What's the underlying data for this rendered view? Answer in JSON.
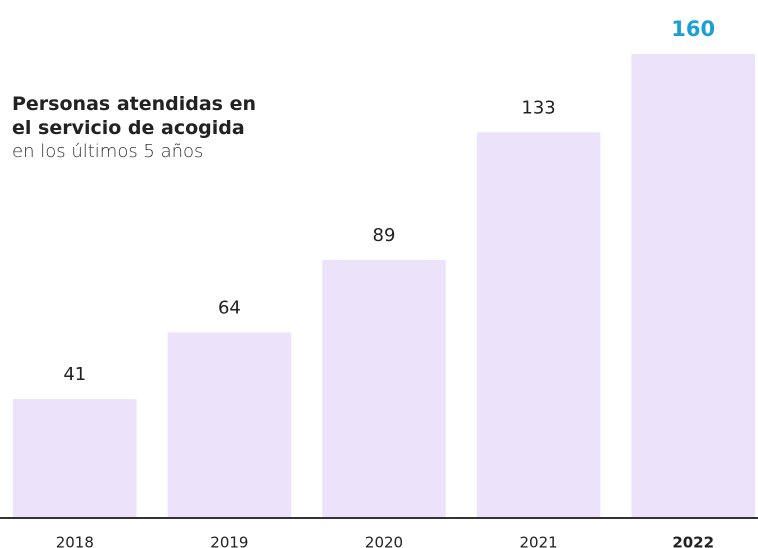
{
  "chart_data": {
    "type": "bar",
    "title": "Personas atendidas en el servicio de acogida",
    "subtitle": "en los últimos 5 años",
    "categories": [
      "2018",
      "2019",
      "2020",
      "2021",
      "2022"
    ],
    "values": [
      41,
      64,
      89,
      133,
      160
    ],
    "color": "#ece3fb",
    "label_color": "#222222",
    "highlight": 4,
    "highlight_color": "#1a9fd6"
  }
}
